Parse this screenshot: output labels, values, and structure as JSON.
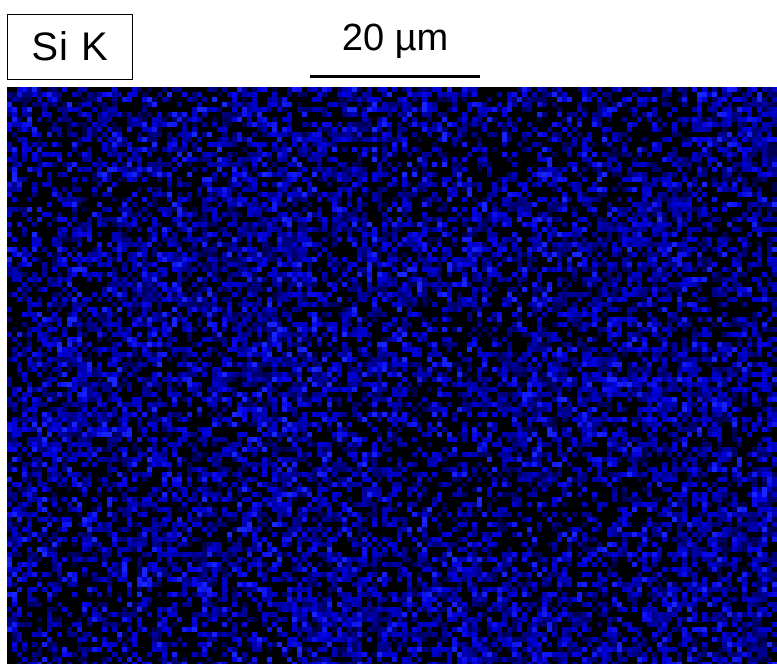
{
  "map": {
    "element_label": "Si K",
    "scale_bar_label": "20 µm",
    "signal_color": "#1e1ef0",
    "background_color": "#000000"
  }
}
